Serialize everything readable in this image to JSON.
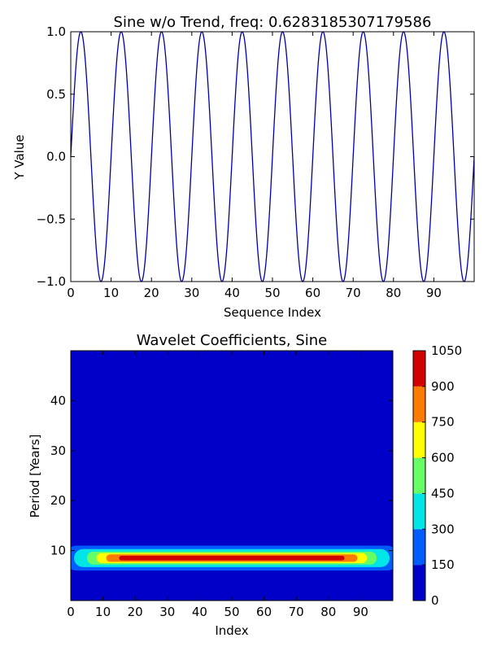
{
  "chart_data": [
    {
      "type": "line",
      "title": "Sine w/o Trend, freq: 0.6283185307179586",
      "xlabel": "Sequence Index",
      "ylabel": "Y Value",
      "xlim": [
        0,
        100
      ],
      "ylim": [
        -1.0,
        1.0
      ],
      "xticks": [
        "0",
        "10",
        "20",
        "30",
        "40",
        "50",
        "60",
        "70",
        "80",
        "90"
      ],
      "yticks": [
        "1.0",
        "0.5",
        "0.0",
        "−0.5",
        "−1.0"
      ],
      "series": [
        {
          "function": "sin",
          "frequency": 0.6283185307179586,
          "amplitude": 1.0,
          "x_start": 0,
          "x_end": 100,
          "color": "#0000aa"
        }
      ]
    },
    {
      "type": "heatmap",
      "title": "Wavelet Coefficients, Sine",
      "xlabel": "Index",
      "ylabel": "Period [Years]",
      "xlim": [
        0,
        100
      ],
      "ylim": [
        0,
        50
      ],
      "xticks": [
        "0",
        "10",
        "20",
        "30",
        "40",
        "50",
        "60",
        "70",
        "80",
        "90"
      ],
      "yticks": [
        "40",
        "30",
        "20",
        "10"
      ],
      "peak_period": 8.5,
      "peak_value": 1000,
      "colorbar": {
        "levels": [
          "1050",
          "900",
          "750",
          "600",
          "450",
          "300",
          "150",
          "0"
        ],
        "colors": [
          "#0000c8",
          "#005cff",
          "#00e5e5",
          "#66ff66",
          "#ffff00",
          "#ff7a00",
          "#d40000"
        ]
      }
    }
  ]
}
